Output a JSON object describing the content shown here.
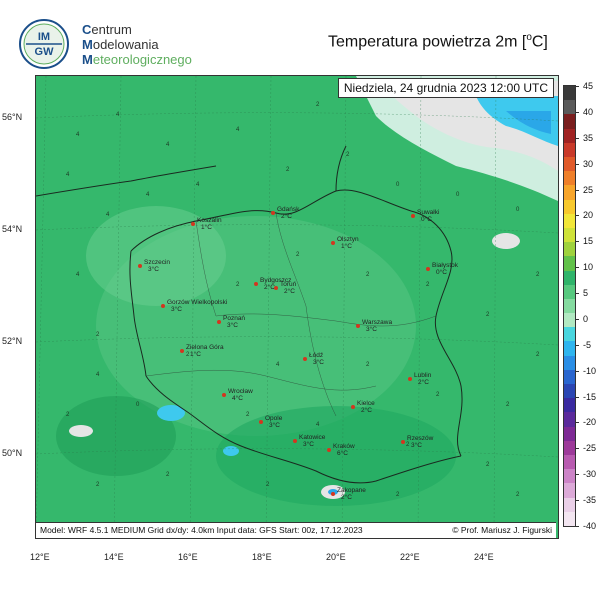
{
  "header": {
    "logo_text_top": "IM",
    "logo_text_bottom": "GW",
    "org_line1_initial": "C",
    "org_line1_rest": "entrum",
    "org_line2_initial": "M",
    "org_line2_rest": "odelowania",
    "org_line3_initial": "M",
    "org_line3_rest": "eteorologicznego",
    "title_main": "Temperatura powietrza 2m [",
    "title_sup": "o",
    "title_end": "C]"
  },
  "map": {
    "date_label": "Niedziela, 24 grudnia 2023 12:00 UTC",
    "footer_left": "Model: WRF 4.5.1 MEDIUM   Grid dx/dy: 4.0km   Input data: GFS   Start: 00z, 17.12.2023",
    "footer_right": "© Prof. Mariusz J. Figurski",
    "lat_labels": [
      "56°N",
      "54°N",
      "52°N",
      "50°N"
    ],
    "lon_labels": [
      "12°E",
      "14°E",
      "16°E",
      "18°E",
      "20°E",
      "22°E",
      "24°E"
    ],
    "cities": [
      {
        "name": "Koszalin",
        "temp": "1°C"
      },
      {
        "name": "Gdańsk",
        "temp": "2°C"
      },
      {
        "name": "Suwałki",
        "temp": "0°C"
      },
      {
        "name": "Olsztyn",
        "temp": "1°C"
      },
      {
        "name": "Szczecin",
        "temp": "3°C"
      },
      {
        "name": "Bydgoszcz",
        "temp": "2°C"
      },
      {
        "name": "Toruń",
        "temp": "2°C"
      },
      {
        "name": "Białystok",
        "temp": "0°C"
      },
      {
        "name": "Gorzów Wielkopolski",
        "temp": "3°C"
      },
      {
        "name": "Poznań",
        "temp": "3°C"
      },
      {
        "name": "Warszawa",
        "temp": "3°C"
      },
      {
        "name": "Zielona Góra",
        "temp": "1°C"
      },
      {
        "name": "Łódź",
        "temp": "3°C"
      },
      {
        "name": "Lublin",
        "temp": "2°C"
      },
      {
        "name": "Wrocław",
        "temp": "4°C"
      },
      {
        "name": "Kielce",
        "temp": "2°C"
      },
      {
        "name": "Opole",
        "temp": "3°C"
      },
      {
        "name": "Katowice",
        "temp": "3°C"
      },
      {
        "name": "Kraków",
        "temp": "6°C"
      },
      {
        "name": "Rzeszów",
        "temp": "3°C"
      },
      {
        "name": "Zakopane",
        "temp": "2°C"
      }
    ]
  },
  "colorbar": {
    "ticks": [
      "45",
      "40",
      "35",
      "30",
      "25",
      "20",
      "15",
      "10",
      "5",
      "0",
      "-5",
      "-10",
      "-15",
      "-20",
      "-25",
      "-30",
      "-35",
      "-40"
    ],
    "colors": [
      "#3a3a3a",
      "#5a5a5a",
      "#7a1e1e",
      "#a12323",
      "#c93a2a",
      "#e05a2a",
      "#ef7f2a",
      "#f7a52b",
      "#f8c92e",
      "#f2e73a",
      "#cfe23a",
      "#9fd23d",
      "#62c24a",
      "#2fb46a",
      "#57c97f",
      "#85dba0",
      "#b2e9c2",
      "#49d6df",
      "#2fb5ef",
      "#2a8ee6",
      "#2a66cf",
      "#2b46b3",
      "#3a2aa0",
      "#5b2a9c",
      "#7e2a95",
      "#9d3a9a",
      "#b85bb0",
      "#cc84c7",
      "#dcaad8",
      "#ead0e8",
      "#f3e6f1"
    ]
  }
}
